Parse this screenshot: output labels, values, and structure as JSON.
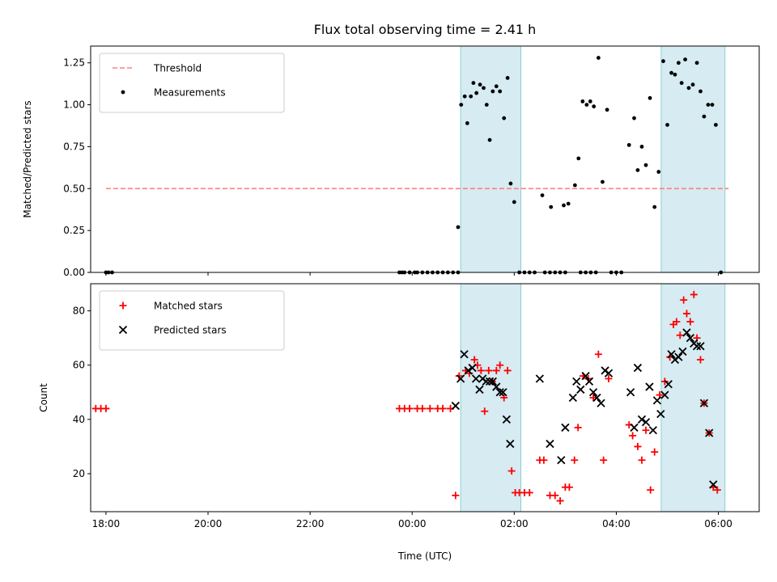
{
  "chart_data": [
    {
      "type": "scatter",
      "title": "Flux total observing time = 2.41 h",
      "xlabel": "",
      "ylabel": "Matched/Predicted stars",
      "xlim": [
        -6.3,
        6.8
      ],
      "ylim": [
        0,
        1.35
      ],
      "yticks": [
        0.0,
        0.25,
        0.5,
        0.75,
        1.0,
        1.25
      ],
      "ytick_labels": [
        "0.00",
        "0.25",
        "0.50",
        "0.75",
        "1.00",
        "1.25"
      ],
      "shaded_regions": [
        [
          0.95,
          2.13
        ],
        [
          4.88,
          6.13
        ]
      ],
      "legend_position": "upper-left",
      "threshold": {
        "name": "Threshold",
        "value": 0.5,
        "x_range": [
          -6.0,
          6.2
        ],
        "color": "#ff7f7f"
      },
      "series": [
        {
          "name": "Measurements",
          "color": "#000000",
          "points": [
            [
              -6.0,
              0
            ],
            [
              -5.95,
              0
            ],
            [
              -5.88,
              0
            ],
            [
              -0.25,
              0
            ],
            [
              -0.2,
              0
            ],
            [
              -0.15,
              0
            ],
            [
              -0.05,
              0
            ],
            [
              0.05,
              0
            ],
            [
              0.1,
              0
            ],
            [
              0.2,
              0
            ],
            [
              0.3,
              0
            ],
            [
              0.4,
              0
            ],
            [
              0.5,
              0
            ],
            [
              0.6,
              0
            ],
            [
              0.7,
              0
            ],
            [
              0.8,
              0
            ],
            [
              0.9,
              0
            ],
            [
              0.9,
              0.27
            ],
            [
              0.96,
              1.0
            ],
            [
              1.03,
              1.05
            ],
            [
              1.08,
              0.89
            ],
            [
              1.15,
              1.05
            ],
            [
              1.2,
              1.13
            ],
            [
              1.26,
              1.07
            ],
            [
              1.33,
              1.12
            ],
            [
              1.4,
              1.1
            ],
            [
              1.46,
              1.0
            ],
            [
              1.52,
              0.79
            ],
            [
              1.58,
              1.08
            ],
            [
              1.65,
              1.11
            ],
            [
              1.72,
              1.08
            ],
            [
              1.8,
              0.92
            ],
            [
              1.87,
              1.16
            ],
            [
              1.93,
              0.53
            ],
            [
              2.0,
              0.42
            ],
            [
              2.1,
              0
            ],
            [
              2.2,
              0
            ],
            [
              2.3,
              0
            ],
            [
              2.4,
              0
            ],
            [
              2.6,
              0
            ],
            [
              2.7,
              0
            ],
            [
              2.8,
              0
            ],
            [
              2.9,
              0
            ],
            [
              3.0,
              0
            ],
            [
              3.3,
              0
            ],
            [
              3.4,
              0
            ],
            [
              3.5,
              0
            ],
            [
              3.6,
              0
            ],
            [
              3.9,
              0
            ],
            [
              4.0,
              0
            ],
            [
              4.1,
              0
            ],
            [
              2.55,
              0.46
            ],
            [
              2.72,
              0.39
            ],
            [
              2.97,
              0.4
            ],
            [
              3.06,
              0.41
            ],
            [
              3.19,
              0.52
            ],
            [
              3.26,
              0.68
            ],
            [
              3.34,
              1.02
            ],
            [
              3.42,
              1.0
            ],
            [
              3.49,
              1.02
            ],
            [
              3.56,
              0.99
            ],
            [
              3.65,
              1.28
            ],
            [
              3.73,
              0.54
            ],
            [
              3.82,
              0.97
            ],
            [
              4.25,
              0.76
            ],
            [
              4.35,
              0.92
            ],
            [
              4.42,
              0.61
            ],
            [
              4.5,
              0.75
            ],
            [
              4.58,
              0.64
            ],
            [
              4.66,
              1.04
            ],
            [
              4.75,
              0.39
            ],
            [
              4.83,
              0.6
            ],
            [
              4.92,
              1.26
            ],
            [
              5.0,
              0.88
            ],
            [
              5.08,
              1.19
            ],
            [
              5.15,
              1.18
            ],
            [
              5.22,
              1.25
            ],
            [
              5.28,
              1.13
            ],
            [
              5.35,
              1.27
            ],
            [
              5.42,
              1.1
            ],
            [
              5.5,
              1.12
            ],
            [
              5.58,
              1.25
            ],
            [
              5.65,
              1.08
            ],
            [
              5.72,
              0.93
            ],
            [
              5.8,
              1.0
            ],
            [
              5.88,
              1.0
            ],
            [
              5.95,
              0.88
            ],
            [
              6.05,
              0
            ]
          ]
        }
      ]
    },
    {
      "type": "scatter",
      "title": "",
      "xlabel": "Time (UTC)",
      "ylabel": "Count",
      "xlim": [
        -6.3,
        6.8
      ],
      "ylim": [
        6,
        90
      ],
      "yticks": [
        20,
        40,
        60,
        80
      ],
      "ytick_labels": [
        "20",
        "40",
        "60",
        "80"
      ],
      "xticks": [
        -6,
        -4,
        -2,
        0,
        2,
        4,
        6
      ],
      "xtick_labels": [
        "18:00",
        "20:00",
        "22:00",
        "00:00",
        "02:00",
        "04:00",
        "06:00"
      ],
      "shaded_regions": [
        [
          0.95,
          2.13
        ],
        [
          4.88,
          6.13
        ]
      ],
      "legend_position": "upper-left",
      "series": [
        {
          "name": "Matched stars",
          "marker": "plus",
          "color": "#ff0000",
          "points": [
            [
              -6.2,
              44
            ],
            [
              -6.1,
              44
            ],
            [
              -6.0,
              44
            ],
            [
              -0.25,
              44
            ],
            [
              -0.15,
              44
            ],
            [
              -0.05,
              44
            ],
            [
              0.1,
              44
            ],
            [
              0.2,
              44
            ],
            [
              0.35,
              44
            ],
            [
              0.5,
              44
            ],
            [
              0.6,
              44
            ],
            [
              0.75,
              44
            ],
            [
              0.85,
              12
            ],
            [
              0.92,
              56
            ],
            [
              1.05,
              58
            ],
            [
              1.12,
              57
            ],
            [
              1.22,
              62
            ],
            [
              1.28,
              60
            ],
            [
              1.35,
              58
            ],
            [
              1.42,
              43
            ],
            [
              1.5,
              58
            ],
            [
              1.57,
              54
            ],
            [
              1.65,
              58
            ],
            [
              1.72,
              60
            ],
            [
              1.8,
              48
            ],
            [
              1.87,
              58
            ],
            [
              1.95,
              21
            ],
            [
              2.02,
              13
            ],
            [
              2.1,
              13
            ],
            [
              2.2,
              13
            ],
            [
              2.3,
              13
            ],
            [
              2.5,
              25
            ],
            [
              2.58,
              25
            ],
            [
              2.7,
              12
            ],
            [
              2.8,
              12
            ],
            [
              2.9,
              10
            ],
            [
              3.0,
              15
            ],
            [
              3.08,
              15
            ],
            [
              3.18,
              25
            ],
            [
              3.25,
              37
            ],
            [
              3.35,
              56
            ],
            [
              3.45,
              55
            ],
            [
              3.55,
              48
            ],
            [
              3.65,
              64
            ],
            [
              3.75,
              25
            ],
            [
              3.85,
              55
            ],
            [
              4.25,
              38
            ],
            [
              4.32,
              34
            ],
            [
              4.42,
              30
            ],
            [
              4.5,
              25
            ],
            [
              4.58,
              36
            ],
            [
              4.67,
              14
            ],
            [
              4.75,
              28
            ],
            [
              4.85,
              49
            ],
            [
              4.95,
              54
            ],
            [
              5.05,
              63
            ],
            [
              5.12,
              75
            ],
            [
              5.18,
              76
            ],
            [
              5.25,
              71
            ],
            [
              5.32,
              84
            ],
            [
              5.38,
              79
            ],
            [
              5.45,
              76
            ],
            [
              5.52,
              86
            ],
            [
              5.58,
              70
            ],
            [
              5.65,
              62
            ],
            [
              5.72,
              46
            ],
            [
              5.82,
              35
            ],
            [
              5.9,
              15
            ],
            [
              5.98,
              14
            ]
          ]
        },
        {
          "name": "Predicted stars",
          "marker": "x",
          "color": "#000000",
          "points": [
            [
              0.85,
              45
            ],
            [
              0.95,
              55
            ],
            [
              1.02,
              64
            ],
            [
              1.1,
              58
            ],
            [
              1.18,
              59
            ],
            [
              1.25,
              55
            ],
            [
              1.32,
              51
            ],
            [
              1.38,
              55
            ],
            [
              1.45,
              54
            ],
            [
              1.52,
              54
            ],
            [
              1.58,
              54
            ],
            [
              1.65,
              52
            ],
            [
              1.72,
              50
            ],
            [
              1.78,
              50
            ],
            [
              1.85,
              40
            ],
            [
              1.92,
              31
            ],
            [
              2.5,
              55
            ],
            [
              2.7,
              31
            ],
            [
              2.92,
              25
            ],
            [
              3.0,
              37
            ],
            [
              3.15,
              48
            ],
            [
              3.22,
              54
            ],
            [
              3.3,
              51
            ],
            [
              3.4,
              56
            ],
            [
              3.47,
              54
            ],
            [
              3.55,
              50
            ],
            [
              3.62,
              48
            ],
            [
              3.7,
              46
            ],
            [
              3.78,
              58
            ],
            [
              3.85,
              57
            ],
            [
              4.28,
              50
            ],
            [
              4.35,
              37
            ],
            [
              4.42,
              59
            ],
            [
              4.5,
              40
            ],
            [
              4.58,
              39
            ],
            [
              4.65,
              52
            ],
            [
              4.72,
              36
            ],
            [
              4.8,
              47
            ],
            [
              4.87,
              42
            ],
            [
              4.95,
              49
            ],
            [
              5.02,
              53
            ],
            [
              5.08,
              64
            ],
            [
              5.15,
              62
            ],
            [
              5.22,
              63
            ],
            [
              5.3,
              65
            ],
            [
              5.38,
              72
            ],
            [
              5.45,
              70
            ],
            [
              5.52,
              68
            ],
            [
              5.58,
              67
            ],
            [
              5.65,
              67
            ],
            [
              5.72,
              46
            ],
            [
              5.82,
              35
            ],
            [
              5.9,
              16
            ]
          ]
        }
      ]
    }
  ]
}
